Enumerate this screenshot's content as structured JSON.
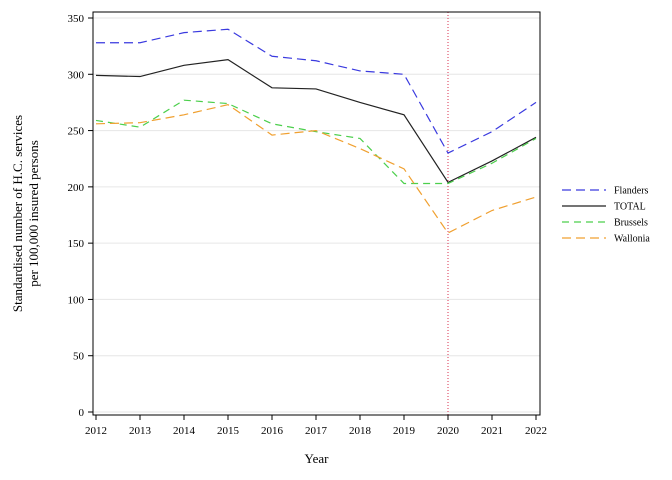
{
  "chart_data": {
    "type": "line",
    "xlabel": "Year",
    "ylabel_lines": [
      "Standardised number of H.C. services",
      "per 100,000 insured persons"
    ],
    "x": [
      2012,
      2013,
      2014,
      2015,
      2016,
      2017,
      2018,
      2019,
      2020,
      2021,
      2022
    ],
    "xlim": [
      2012,
      2022
    ],
    "ylim": [
      0,
      350
    ],
    "yticks": [
      0,
      50,
      100,
      150,
      200,
      250,
      300,
      350
    ],
    "grid": "horizontal",
    "legend_position": "right",
    "reference_line": {
      "x": 2020,
      "color": "#d9304f",
      "style": "dotted"
    },
    "series": [
      {
        "name": "Flanders",
        "color": "#3a3adf",
        "dash": "long",
        "values": [
          328,
          328,
          337,
          340,
          316,
          312,
          303,
          300,
          230,
          249,
          275
        ]
      },
      {
        "name": "TOTAL",
        "color": "#222222",
        "dash": "solid",
        "values": [
          299,
          298,
          308,
          313,
          288,
          287,
          275,
          264,
          204,
          223,
          244
        ]
      },
      {
        "name": "Brussels",
        "color": "#4ccf4c",
        "dash": "medium",
        "values": [
          259,
          253,
          277,
          274,
          256,
          249,
          243,
          203,
          203,
          221,
          243
        ]
      },
      {
        "name": "Wallonia",
        "color": "#f0a030",
        "dash": "long",
        "values": [
          256,
          257,
          264,
          273,
          246,
          250,
          234,
          216,
          159,
          179,
          191
        ]
      }
    ]
  }
}
